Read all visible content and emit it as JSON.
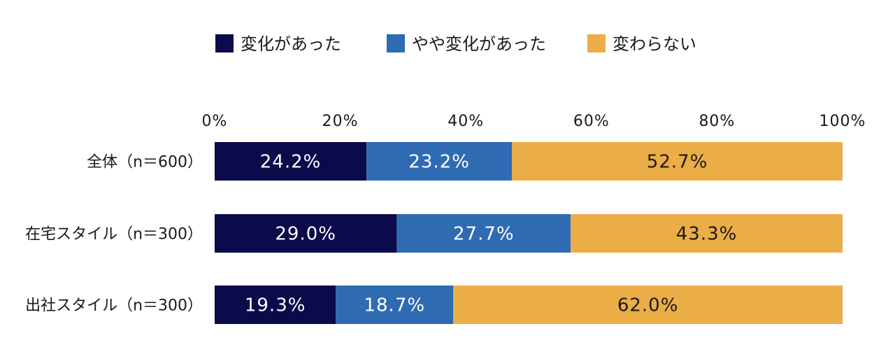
{
  "chart_data": {
    "type": "bar",
    "orientation": "horizontal",
    "stacked": true,
    "percent_stacked": true,
    "title": "",
    "xlabel": "",
    "ylabel": "",
    "xlim": [
      0,
      100
    ],
    "ticks": [
      "0%",
      "20%",
      "40%",
      "60%",
      "80%",
      "100%"
    ],
    "tick_values": [
      0,
      20,
      40,
      60,
      80,
      100
    ],
    "grid": false,
    "legend_position": "top",
    "categories": [
      "全体（n＝600）",
      "在宅スタイル（n＝300）",
      "出社スタイル（n＝300）"
    ],
    "series": [
      {
        "name": "変化があった",
        "color": "#0b0a4a",
        "label_color": "#ffffff",
        "values": [
          24.2,
          29.0,
          19.3
        ],
        "labels": [
          "24.2%",
          "29.0%",
          "19.3%"
        ]
      },
      {
        "name": "やや変化があった",
        "color": "#2f6bb3",
        "label_color": "#ffffff",
        "values": [
          23.2,
          27.7,
          18.7
        ],
        "labels": [
          "23.2%",
          "27.7%",
          "18.7%"
        ]
      },
      {
        "name": "変わらない",
        "color": "#ebad45",
        "label_color": "#1a1a1a",
        "values": [
          52.7,
          43.3,
          62.0
        ],
        "labels": [
          "52.7%",
          "43.3%",
          "62.0%"
        ]
      }
    ]
  }
}
